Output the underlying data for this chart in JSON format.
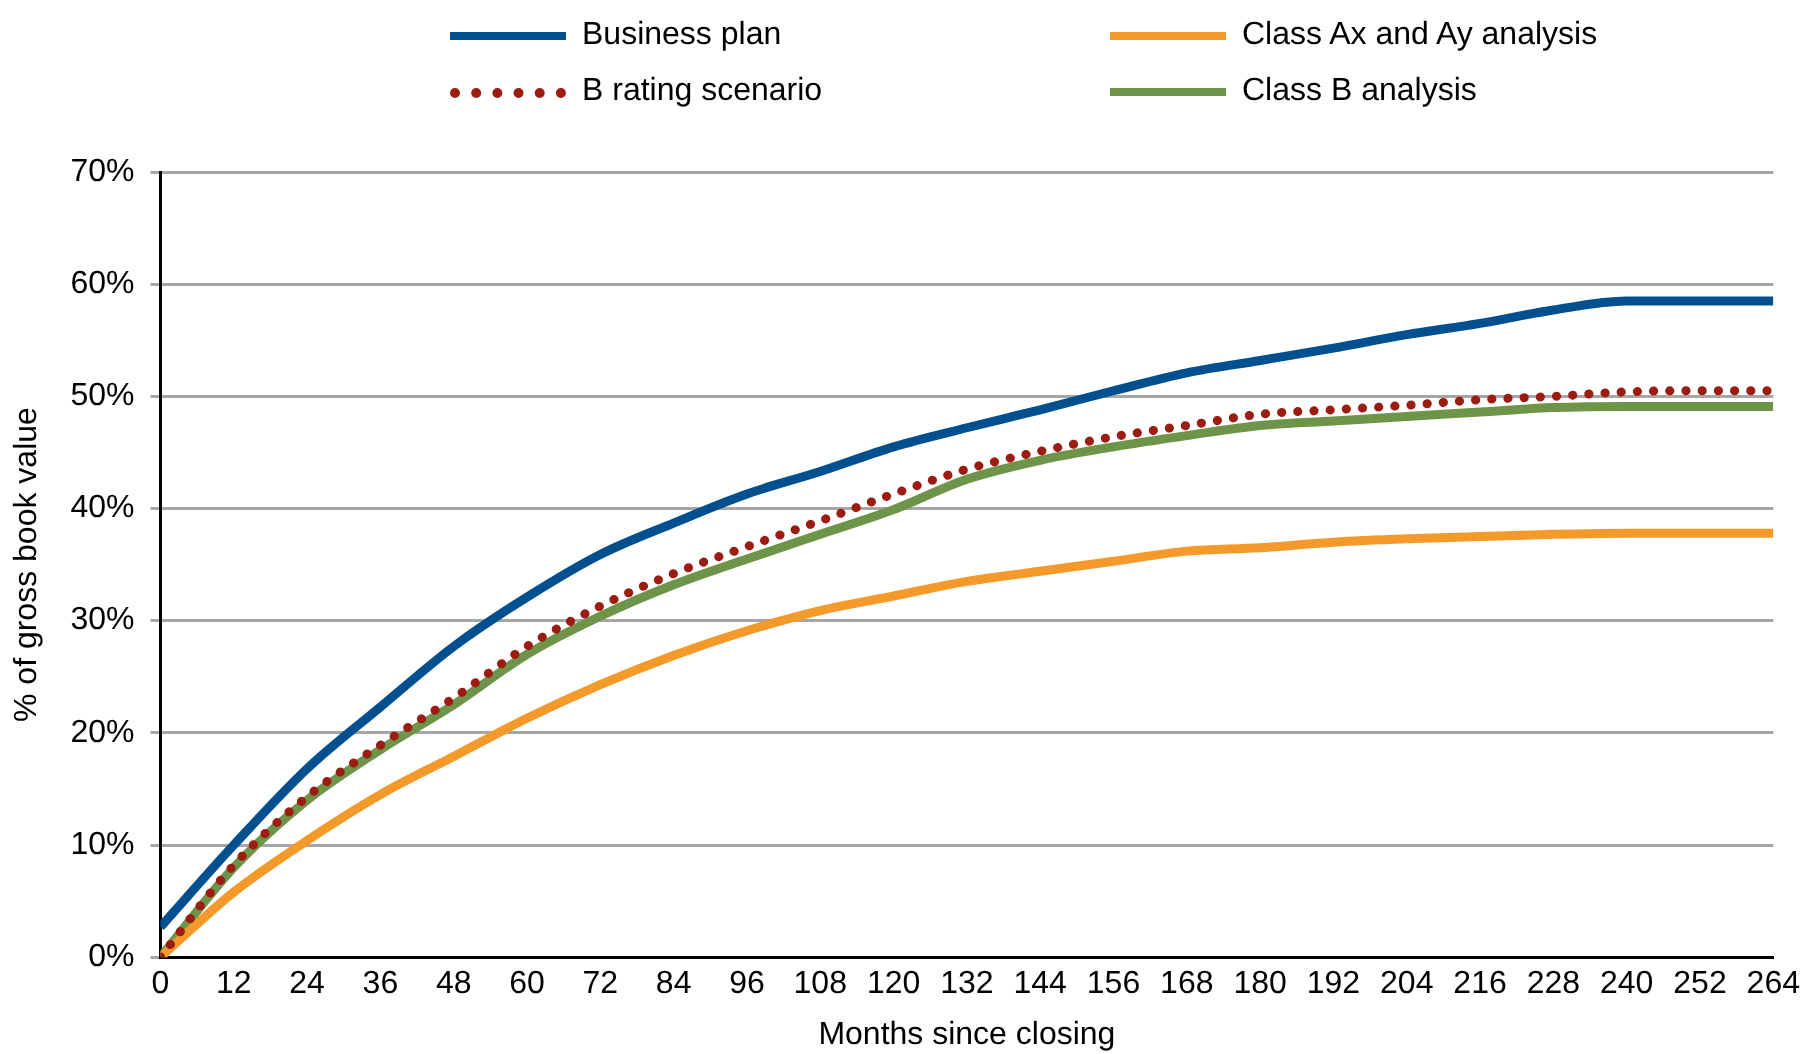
{
  "chart_data": {
    "type": "line",
    "xlabel": "Months since closing",
    "ylabel": "% of gross book value",
    "x": [
      0,
      12,
      24,
      36,
      48,
      60,
      72,
      84,
      96,
      108,
      120,
      132,
      144,
      156,
      168,
      180,
      192,
      204,
      216,
      228,
      240,
      252,
      264
    ],
    "xlim": [
      0,
      264
    ],
    "xticks": [
      0,
      12,
      24,
      36,
      48,
      60,
      72,
      84,
      96,
      108,
      120,
      132,
      144,
      156,
      168,
      180,
      192,
      204,
      216,
      228,
      240,
      252,
      264
    ],
    "ylim": [
      0,
      70
    ],
    "yticks": [
      {
        "value": 0,
        "label": "0%"
      },
      {
        "value": 10,
        "label": "10%"
      },
      {
        "value": 20,
        "label": "20%"
      },
      {
        "value": 30,
        "label": "30%"
      },
      {
        "value": 40,
        "label": "40%"
      },
      {
        "value": 50,
        "label": "50%"
      },
      {
        "value": 60,
        "label": "60%"
      },
      {
        "value": 70,
        "label": "70%"
      }
    ],
    "grid": "y",
    "legend": "top",
    "marker": "none",
    "series": [
      {
        "name": "Business plan",
        "color": "#00508f",
        "line_style": "solid",
        "values": [
          2.7,
          10,
          16.8,
          22.3,
          27.7,
          32.1,
          35.9,
          38.7,
          41.3,
          43.3,
          45.5,
          47.2,
          48.8,
          50.5,
          52.1,
          53.2,
          54.3,
          55.5,
          56.5,
          57.7,
          58.5,
          58.5,
          58.5
        ]
      },
      {
        "name": "B rating scenario",
        "color": "#9c1c12",
        "line_style": "dotted",
        "values": [
          0,
          8.2,
          14.3,
          18.9,
          23.1,
          27.7,
          31.3,
          34.2,
          36.6,
          38.9,
          41.3,
          43.5,
          45.1,
          46.4,
          47.4,
          48.4,
          48.8,
          49.2,
          49.7,
          50,
          50.4,
          50.5,
          50.5
        ]
      },
      {
        "name": "Class Ax and Ay analysis",
        "color": "#f39a2b",
        "line_style": "solid",
        "values": [
          0,
          5.8,
          10.4,
          14.5,
          17.9,
          21.3,
          24.3,
          26.9,
          29.1,
          30.9,
          32.2,
          33.5,
          34.4,
          35.3,
          36.2,
          36.5,
          37,
          37.3,
          37.5,
          37.7,
          37.8,
          37.8,
          37.8
        ]
      },
      {
        "name": "Class B analysis",
        "color": "#6d9449",
        "line_style": "solid",
        "values": [
          0,
          8,
          14,
          18.5,
          22.5,
          27,
          30.4,
          33.2,
          35.5,
          37.7,
          39.9,
          42.6,
          44.3,
          45.5,
          46.5,
          47.4,
          47.8,
          48.2,
          48.6,
          49,
          49.1,
          49.1,
          49.1
        ]
      }
    ]
  }
}
